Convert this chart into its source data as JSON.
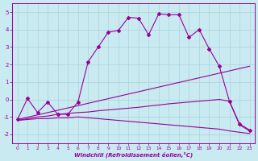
{
  "background_color": "#c8eaf0",
  "grid_color": "#aad4dc",
  "line_color": "#990099",
  "xlim": [
    -0.5,
    23.5
  ],
  "ylim": [
    -2.5,
    5.5
  ],
  "yticks": [
    -2,
    -1,
    0,
    1,
    2,
    3,
    4,
    5
  ],
  "xticks": [
    0,
    1,
    2,
    3,
    4,
    5,
    6,
    7,
    8,
    9,
    10,
    11,
    12,
    13,
    14,
    15,
    16,
    17,
    18,
    19,
    20,
    21,
    22,
    23
  ],
  "xlabel": "Windchill (Refroidissement éolien,°C)",
  "curve1_x": [
    0,
    1,
    2,
    3,
    4,
    5,
    6,
    7,
    8,
    9,
    10,
    11,
    12,
    13,
    14,
    15,
    16,
    17,
    18,
    19,
    20,
    21,
    22,
    23
  ],
  "curve1_y": [
    -1.15,
    0.05,
    -0.75,
    -0.15,
    -0.85,
    -0.85,
    -0.15,
    2.15,
    3.0,
    3.85,
    3.95,
    4.7,
    4.65,
    3.7,
    4.9,
    4.85,
    4.85,
    3.55,
    4.0,
    2.9,
    1.9,
    -0.1,
    -1.4,
    -1.75
  ],
  "curve2_x": [
    0,
    23
  ],
  "curve2_y": [
    -1.15,
    1.9
  ],
  "curve3_x": [
    0,
    1,
    2,
    3,
    4,
    5,
    6,
    7,
    8,
    9,
    10,
    11,
    12,
    13,
    14,
    15,
    16,
    17,
    18,
    19,
    20,
    21,
    22,
    23
  ],
  "curve3_y": [
    -1.2,
    -1.1,
    -1.0,
    -0.95,
    -0.85,
    -0.8,
    -0.75,
    -0.72,
    -0.65,
    -0.6,
    -0.55,
    -0.5,
    -0.45,
    -0.38,
    -0.32,
    -0.25,
    -0.2,
    -0.15,
    -0.1,
    -0.05,
    0.0,
    -0.1,
    -1.45,
    -1.8
  ],
  "curve4_x": [
    0,
    1,
    2,
    3,
    4,
    5,
    6,
    7,
    8,
    9,
    10,
    11,
    12,
    13,
    14,
    15,
    16,
    17,
    18,
    19,
    20,
    21,
    22,
    23
  ],
  "curve4_y": [
    -1.2,
    -1.15,
    -1.1,
    -1.1,
    -1.05,
    -1.05,
    -1.0,
    -1.05,
    -1.1,
    -1.15,
    -1.2,
    -1.25,
    -1.3,
    -1.35,
    -1.4,
    -1.45,
    -1.5,
    -1.55,
    -1.6,
    -1.65,
    -1.7,
    -1.8,
    -1.88,
    -1.95
  ]
}
